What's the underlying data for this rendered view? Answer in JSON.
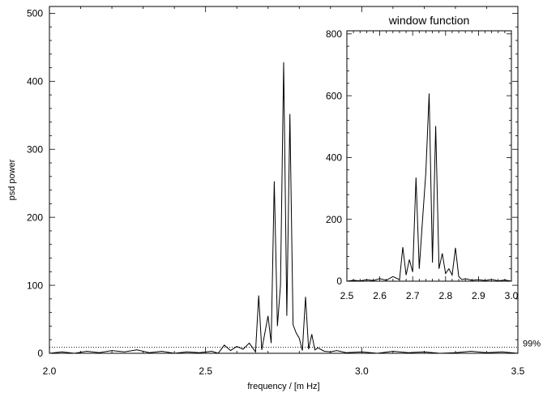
{
  "chart_data": [
    {
      "type": "line",
      "title": "",
      "xlabel": "frequency / [m Hz]",
      "ylabel": "psd power",
      "xlim": [
        2.0,
        3.5
      ],
      "ylim": [
        0,
        510
      ],
      "xticks": [
        2.0,
        2.5,
        3.0,
        3.5
      ],
      "xtick_labels": [
        "2.0",
        "2.5",
        "3.0",
        "3.5"
      ],
      "yticks": [
        0,
        100,
        200,
        300,
        400,
        500
      ],
      "ytick_labels": [
        "0",
        "100",
        "200",
        "300",
        "400",
        "500"
      ],
      "grid": false,
      "threshold": {
        "y": 9,
        "label": "99%",
        "style": "dotted"
      },
      "series": [
        {
          "x": [
            2.0,
            2.04,
            2.08,
            2.12,
            2.16,
            2.2,
            2.24,
            2.28,
            2.32,
            2.36,
            2.4,
            2.44,
            2.48,
            2.52,
            2.54,
            2.56,
            2.58,
            2.6,
            2.62,
            2.64,
            2.66,
            2.67,
            2.68,
            2.7,
            2.71,
            2.72,
            2.73,
            2.74,
            2.75,
            2.76,
            2.77,
            2.78,
            2.79,
            2.8,
            2.81,
            2.82,
            2.83,
            2.84,
            2.85,
            2.86,
            2.88,
            2.9,
            2.92,
            2.95,
            3.0,
            3.05,
            3.1,
            3.15,
            3.2,
            3.25,
            3.3,
            3.35,
            3.4,
            3.45,
            3.5
          ],
          "y": [
            0,
            2,
            0,
            3,
            1,
            4,
            2,
            5,
            1,
            3,
            0,
            2,
            1,
            3,
            0,
            12,
            4,
            10,
            6,
            15,
            2,
            85,
            5,
            55,
            15,
            253,
            40,
            100,
            428,
            55,
            352,
            42,
            30,
            22,
            4,
            83,
            6,
            28,
            5,
            8,
            3,
            2,
            4,
            1,
            2,
            0,
            3,
            1,
            2,
            0,
            1,
            3,
            1,
            2,
            0
          ]
        }
      ]
    },
    {
      "type": "line",
      "title": "window function",
      "xlabel": "",
      "ylabel": "",
      "xlim": [
        2.5,
        3.0
      ],
      "ylim": [
        0,
        810
      ],
      "xticks": [
        2.5,
        2.6,
        2.7,
        2.8,
        2.9,
        3.0
      ],
      "xtick_labels": [
        "2.5",
        "2.6",
        "2.7",
        "2.8",
        "2.9",
        "3.0"
      ],
      "yticks": [
        0,
        200,
        400,
        600,
        800
      ],
      "ytick_labels": [
        "0",
        "200",
        "400",
        "600",
        "800"
      ],
      "grid": false,
      "series": [
        {
          "x": [
            2.5,
            2.52,
            2.54,
            2.56,
            2.58,
            2.6,
            2.62,
            2.64,
            2.66,
            2.67,
            2.68,
            2.69,
            2.7,
            2.71,
            2.72,
            2.73,
            2.74,
            2.75,
            2.76,
            2.77,
            2.78,
            2.79,
            2.8,
            2.81,
            2.82,
            2.83,
            2.84,
            2.85,
            2.86,
            2.88,
            2.9,
            2.92,
            2.94,
            2.96,
            2.98,
            3.0
          ],
          "y": [
            0,
            3,
            1,
            5,
            2,
            8,
            3,
            15,
            5,
            110,
            20,
            70,
            30,
            335,
            40,
            200,
            350,
            607,
            60,
            502,
            40,
            90,
            25,
            40,
            20,
            108,
            15,
            5,
            8,
            3,
            5,
            2,
            6,
            1,
            4,
            0
          ]
        }
      ]
    }
  ]
}
